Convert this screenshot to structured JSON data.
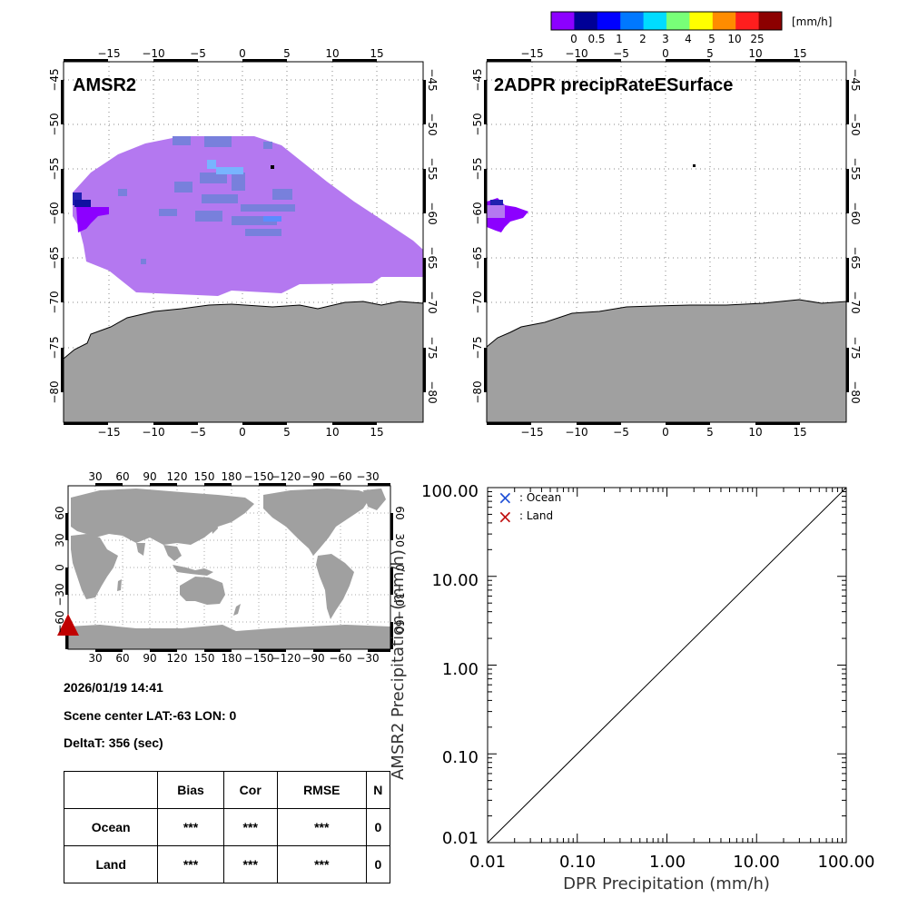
{
  "colorbar": {
    "colors": [
      "#8c00ff",
      "#000096",
      "#0000ff",
      "#0078ff",
      "#00dcff",
      "#78ff78",
      "#ffff00",
      "#ff8c00",
      "#ff1e1e",
      "#8c0000"
    ],
    "tick_labels": [
      "0",
      "0.5",
      "1",
      "2",
      "3",
      "4",
      "5",
      "10",
      "25"
    ],
    "unit": "[mm/h]"
  },
  "maps": [
    {
      "title": "AMSR2",
      "lon_ticks": [
        "−15",
        "−10",
        "−5",
        "0",
        "5",
        "10",
        "15"
      ],
      "lat_ticks": [
        "−45",
        "−50",
        "−55",
        "−60",
        "−65",
        "−70",
        "−75",
        "−80"
      ]
    },
    {
      "title": "2ADPR precipRateESurface",
      "lon_ticks": [
        "−15",
        "−10",
        "−5",
        "0",
        "5",
        "10",
        "15"
      ],
      "lat_ticks": [
        "−45",
        "−50",
        "−55",
        "−60",
        "−65",
        "−70",
        "−75",
        "−80"
      ]
    }
  ],
  "world_map": {
    "lon_ticks": [
      "30",
      "60",
      "90",
      "120",
      "150",
      "180",
      "−150",
      "−120",
      "−90",
      "−60",
      "−30"
    ],
    "lat_ticks": [
      "60",
      "30",
      "0",
      "−30",
      "−60"
    ]
  },
  "info": {
    "datetime": "2026/01/19 14:41",
    "scene_center": "Scene center LAT:-63   LON:   0",
    "deltat": "DeltaT:  356 (sec)"
  },
  "stats_table": {
    "headers": [
      "",
      "Bias",
      "Cor",
      "RMSE",
      "N"
    ],
    "rows": [
      [
        "Ocean",
        "***",
        "***",
        "***",
        "0"
      ],
      [
        "Land",
        "***",
        "***",
        "***",
        "0"
      ]
    ]
  },
  "chart_data": {
    "type": "scatter",
    "scale": "log-log",
    "xlabel": "DPR Precipitation (mm/h)",
    "ylabel": "AMSR2 Precipitation (mm/h)",
    "xlim": [
      0.01,
      100
    ],
    "ylim": [
      0.01,
      100
    ],
    "x_tick_labels": [
      "0.01",
      "0.10",
      "1.00",
      "10.00",
      "100.00"
    ],
    "y_tick_labels": [
      "0.01",
      "0.10",
      "1.00",
      "10.00",
      "100.00"
    ],
    "reference_line": "1:1",
    "legend": [
      {
        "symbol": "×",
        "label": ": Ocean",
        "color": "#1f4fd6"
      },
      {
        "symbol": "×",
        "label": ": Land",
        "color": "#c01010"
      }
    ],
    "series": [
      {
        "name": "Ocean",
        "points": []
      },
      {
        "name": "Land",
        "points": []
      }
    ]
  }
}
